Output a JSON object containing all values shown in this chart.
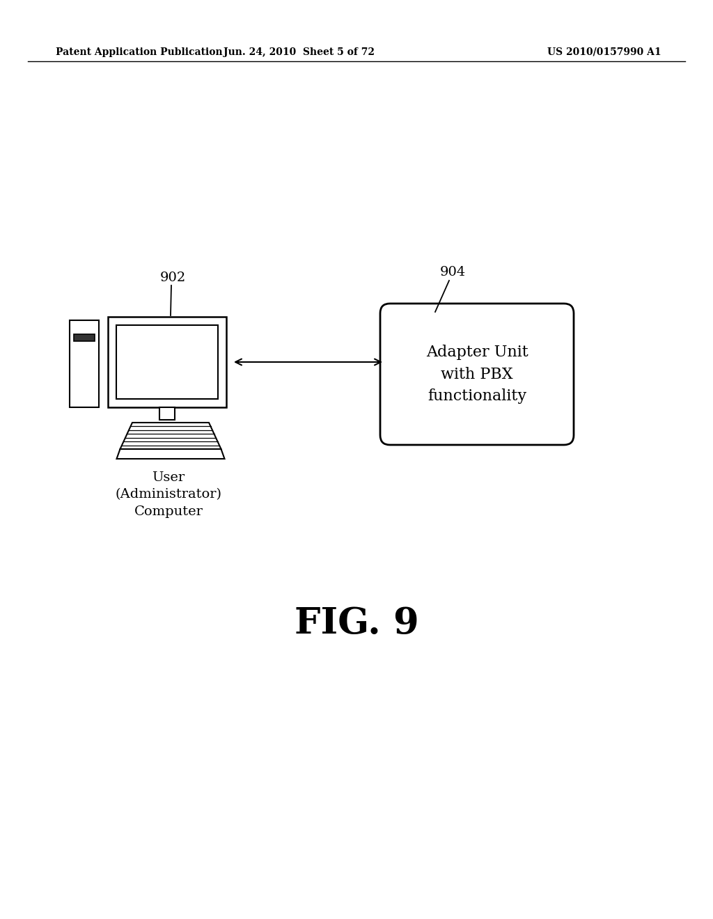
{
  "background_color": "#ffffff",
  "header_left": "Patent Application Publication",
  "header_center": "Jun. 24, 2010  Sheet 5 of 72",
  "header_right": "US 2010/0157990 A1",
  "figure_label": "FIG. 9",
  "computer_label": "902",
  "adapter_label": "904",
  "computer_text": "User\n(Administrator)\nComputer",
  "adapter_text": "Adapter Unit\nwith PBX\nfunctionality"
}
